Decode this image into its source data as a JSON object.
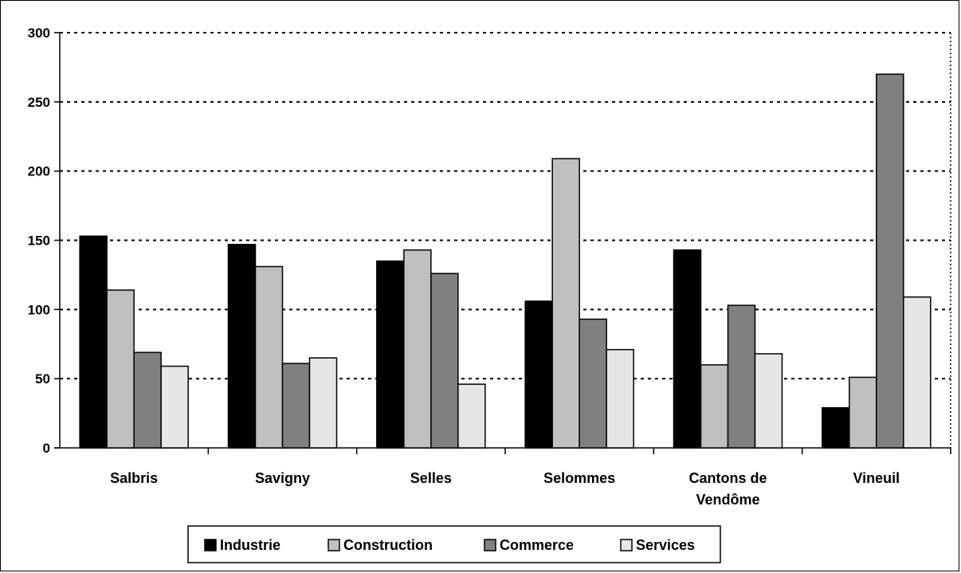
{
  "chart_data": {
    "type": "bar",
    "categories": [
      "Salbris",
      "Savigny",
      "Selles",
      "Selommes",
      "Cantons de Vendôme",
      "Vineuil"
    ],
    "category_lines": [
      [
        "Salbris"
      ],
      [
        "Savigny"
      ],
      [
        "Selles"
      ],
      [
        "Selommes"
      ],
      [
        "Cantons de",
        "Vendôme"
      ],
      [
        "Vineuil"
      ]
    ],
    "series": [
      {
        "name": "Industrie",
        "color": "#000000",
        "values": [
          153,
          147,
          135,
          106,
          143,
          29
        ]
      },
      {
        "name": "Construction",
        "color": "#c0c0c0",
        "values": [
          114,
          131,
          143,
          209,
          60,
          51
        ]
      },
      {
        "name": "Commerce",
        "color": "#808080",
        "values": [
          69,
          61,
          126,
          93,
          103,
          270
        ]
      },
      {
        "name": "Services",
        "color": "#e6e6e6",
        "values": [
          59,
          65,
          46,
          71,
          68,
          109
        ]
      }
    ],
    "ylim": [
      0,
      300
    ],
    "yticks": [
      0,
      50,
      100,
      150,
      200,
      250,
      300
    ],
    "grid": true,
    "grid_style": "dotted",
    "legend_position": "bottom",
    "title": "",
    "xlabel": "",
    "ylabel": ""
  }
}
